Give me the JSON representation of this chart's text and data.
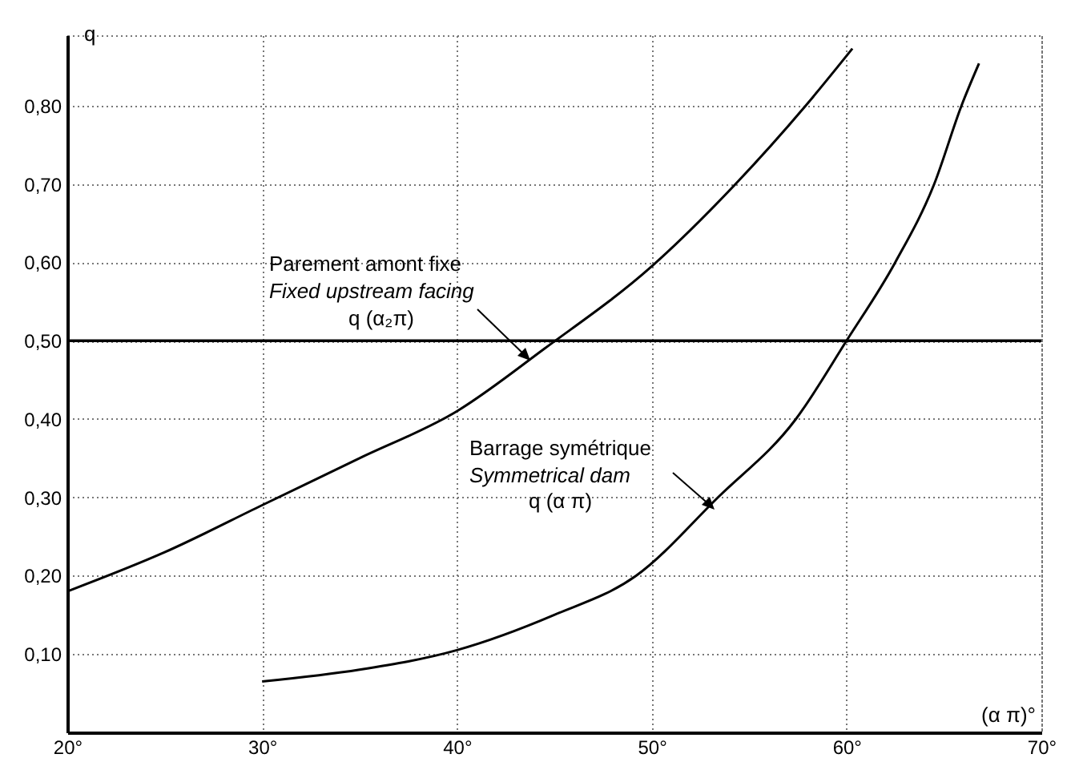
{
  "chart_data": {
    "type": "line",
    "xlabel": "(α π)°",
    "ylabel": "q",
    "xlim": [
      20,
      70
    ],
    "ylim": [
      0,
      0.89
    ],
    "xticks": [
      {
        "value": 20,
        "label": "20°"
      },
      {
        "value": 30,
        "label": "30°"
      },
      {
        "value": 40,
        "label": "40°"
      },
      {
        "value": 50,
        "label": "50°"
      },
      {
        "value": 60,
        "label": "60°"
      },
      {
        "value": 70,
        "label": "70°"
      }
    ],
    "yticks": [
      {
        "value": 0.1,
        "label": "0,10"
      },
      {
        "value": 0.2,
        "label": "0,20"
      },
      {
        "value": 0.3,
        "label": "0,30"
      },
      {
        "value": 0.4,
        "label": "0,40"
      },
      {
        "value": 0.5,
        "label": "0,50"
      },
      {
        "value": 0.6,
        "label": "0,60"
      },
      {
        "value": 0.7,
        "label": "0,70"
      },
      {
        "value": 0.8,
        "label": "0,80"
      }
    ],
    "grid": true,
    "line_style": "solid",
    "series": [
      {
        "color": "#000000",
        "x": [
          20,
          25,
          30,
          35,
          40,
          44.5,
          50,
          54.3,
          57.9,
          60.3
        ],
        "values": [
          0.18,
          0.23,
          0.29,
          0.35,
          0.41,
          0.49,
          0.595,
          0.7,
          0.8,
          0.873
        ]
      },
      {
        "color": "#000000",
        "x": [
          30,
          35,
          40,
          45,
          49.2,
          53.4,
          57.4,
          60,
          62.5,
          64.5,
          65.9,
          66.8
        ],
        "values": [
          0.065,
          0.08,
          0.105,
          0.15,
          0.2,
          0.3,
          0.4,
          0.5,
          0.6,
          0.7,
          0.8,
          0.854
        ]
      }
    ],
    "ref_lines": [
      {
        "axis": "y",
        "value": 0.5,
        "color": "#000000"
      }
    ],
    "annotations": [
      "Parement amont fixe",
      "Fixed upstream facing",
      "q (α₂π)",
      "Barrage symétrique",
      "Symmetrical dam",
      "q (α π)"
    ]
  }
}
